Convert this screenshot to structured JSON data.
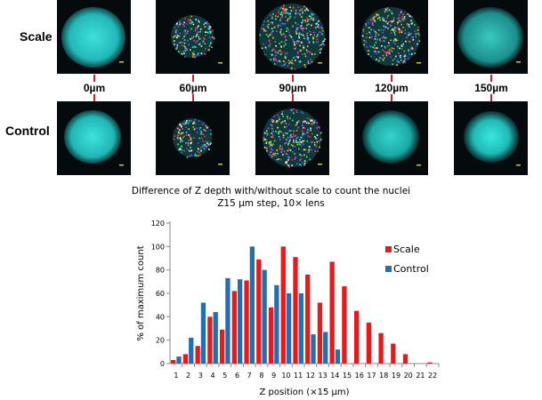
{
  "panel": {
    "row_labels": [
      "Scale",
      "Control"
    ],
    "depth_labels": [
      "0µm",
      "60µm",
      "90µm",
      "120µm",
      "150µm"
    ],
    "connector_color": "#cc2222"
  },
  "chart_data": {
    "type": "bar",
    "title": "Difference of Z depth with/without scale to count the nuclei",
    "subtitle": "Z15 µm step, 10× lens",
    "xlabel": "Z position (×15 µm)",
    "ylabel": "% of maximum count",
    "ylim": [
      0,
      120
    ],
    "yticks": [
      0,
      20,
      40,
      60,
      80,
      100,
      120
    ],
    "grid": false,
    "legend_position": "right",
    "categories": [
      "1",
      "2",
      "3",
      "4",
      "5",
      "6",
      "7",
      "8",
      "9",
      "10",
      "11",
      "12",
      "13",
      "14",
      "15",
      "16",
      "17",
      "18",
      "19",
      "20",
      "21",
      "22"
    ],
    "series": [
      {
        "name": "Scale",
        "color": "#e8191a",
        "values": [
          3,
          8,
          15,
          40,
          29,
          62,
          71,
          89,
          48,
          100,
          91,
          76,
          52,
          87,
          66,
          45,
          35,
          26,
          17,
          8,
          0,
          1
        ]
      },
      {
        "name": "Control",
        "color": "#1f6fb2",
        "values": [
          6,
          22,
          52,
          44,
          73,
          72,
          100,
          80,
          67,
          60,
          60,
          25,
          27,
          12,
          0,
          0,
          0,
          0,
          0,
          0,
          0,
          0
        ]
      }
    ]
  }
}
